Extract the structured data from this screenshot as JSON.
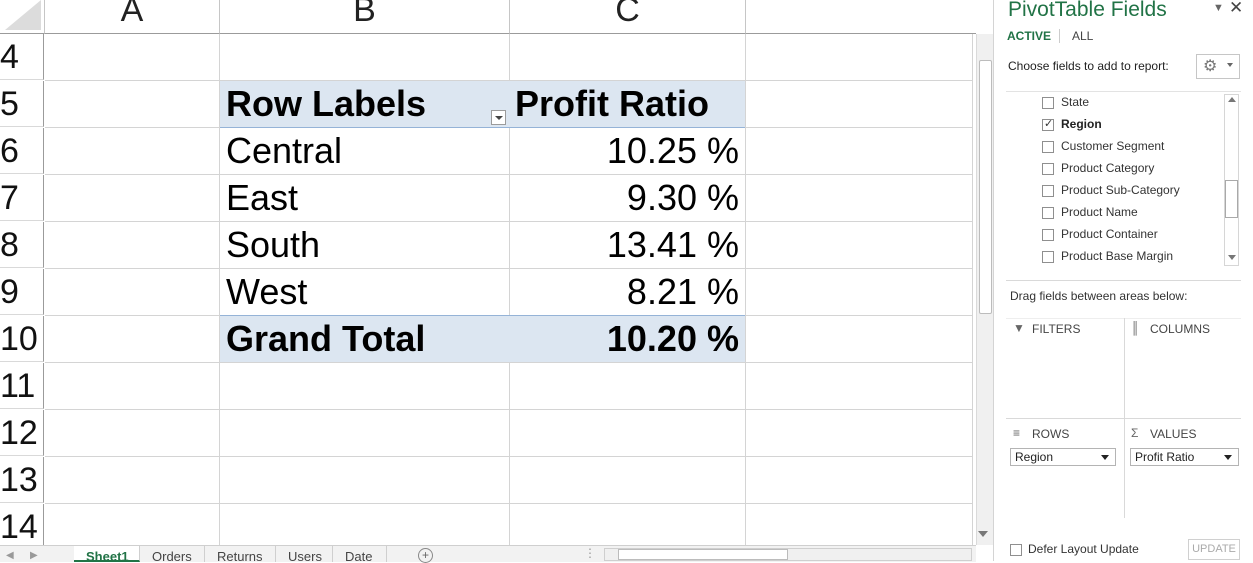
{
  "sheet": {
    "column_headers": [
      "A",
      "B",
      "C"
    ],
    "row_headers": [
      "4",
      "5",
      "6",
      "7",
      "8",
      "9",
      "10",
      "11",
      "12",
      "13",
      "14"
    ],
    "pivot": {
      "header_row_label": "Row Labels",
      "header_value_label": "Profit Ratio",
      "rows": [
        {
          "label": "Central",
          "value": "10.25 %"
        },
        {
          "label": "East",
          "value": "9.30 %"
        },
        {
          "label": "South",
          "value": "13.41 %"
        },
        {
          "label": "West",
          "value": "8.21 %"
        }
      ],
      "grand_total_label": "Grand Total",
      "grand_total_value": "10.20 %"
    },
    "tabs": [
      "Sheet1",
      "Orders",
      "Returns",
      "Users",
      "Date"
    ],
    "active_tab": "Sheet1"
  },
  "pane": {
    "title": "PivotTable Fields",
    "tab_active": "ACTIVE",
    "tab_all": "ALL",
    "choose_label": "Choose fields to add to report:",
    "fields": [
      {
        "label": "State",
        "checked": false
      },
      {
        "label": "Region",
        "checked": true
      },
      {
        "label": "Customer Segment",
        "checked": false
      },
      {
        "label": "Product Category",
        "checked": false
      },
      {
        "label": "Product Sub-Category",
        "checked": false
      },
      {
        "label": "Product Name",
        "checked": false
      },
      {
        "label": "Product Container",
        "checked": false
      },
      {
        "label": "Product Base Margin",
        "checked": false
      }
    ],
    "drag_label": "Drag fields between areas below:",
    "filters_label": "FILTERS",
    "columns_label": "COLUMNS",
    "rows_label": "ROWS",
    "values_label": "VALUES",
    "rows_chip": "Region",
    "values_chip": "Profit Ratio",
    "defer_label": "Defer Layout Update",
    "update_label": "UPDATE"
  },
  "colors": {
    "accent": "#217346",
    "pivot_band": "#dce6f1"
  }
}
